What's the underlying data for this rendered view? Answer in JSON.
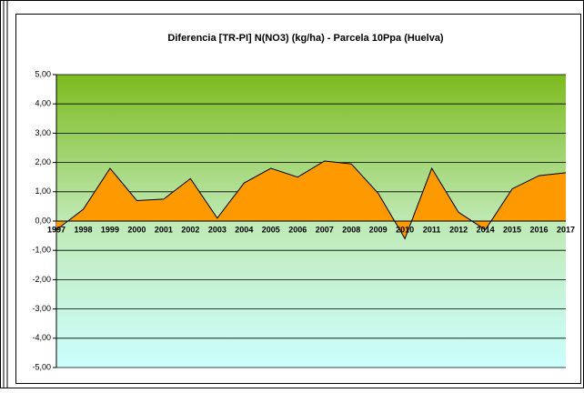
{
  "chart_data": {
    "type": "area",
    "title": "Diferencia [TR-PI] N(NO3) (kg/ha) - Parcela 10Ppa (Huelva)",
    "categories": [
      "1997",
      "1998",
      "1999",
      "2000",
      "2001",
      "2002",
      "2003",
      "2004",
      "2005",
      "2006",
      "2007",
      "2008",
      "2009",
      "2010",
      "2011",
      "2012",
      "2014",
      "2015",
      "2016",
      "2017"
    ],
    "values": [
      -0.3,
      0.4,
      1.8,
      0.7,
      0.75,
      1.45,
      0.1,
      1.3,
      1.8,
      1.5,
      2.05,
      1.95,
      0.95,
      -0.6,
      1.8,
      0.3,
      -0.3,
      1.1,
      1.55,
      1.65
    ],
    "color": "#ff9900",
    "ylim": [
      -5,
      5
    ],
    "yticks": [
      {
        "value": -5,
        "label": "-5,00"
      },
      {
        "value": -4,
        "label": "-4,00"
      },
      {
        "value": -3,
        "label": "-3,00"
      },
      {
        "value": -2,
        "label": "-2,00"
      },
      {
        "value": -1,
        "label": "-1,00"
      },
      {
        "value": 0,
        "label": "0,00"
      },
      {
        "value": 1,
        "label": "1,00"
      },
      {
        "value": 2,
        "label": "2,00"
      },
      {
        "value": 3,
        "label": "3,00"
      },
      {
        "value": 4,
        "label": "4,00"
      },
      {
        "value": 5,
        "label": "5,00"
      }
    ],
    "grid": true
  }
}
